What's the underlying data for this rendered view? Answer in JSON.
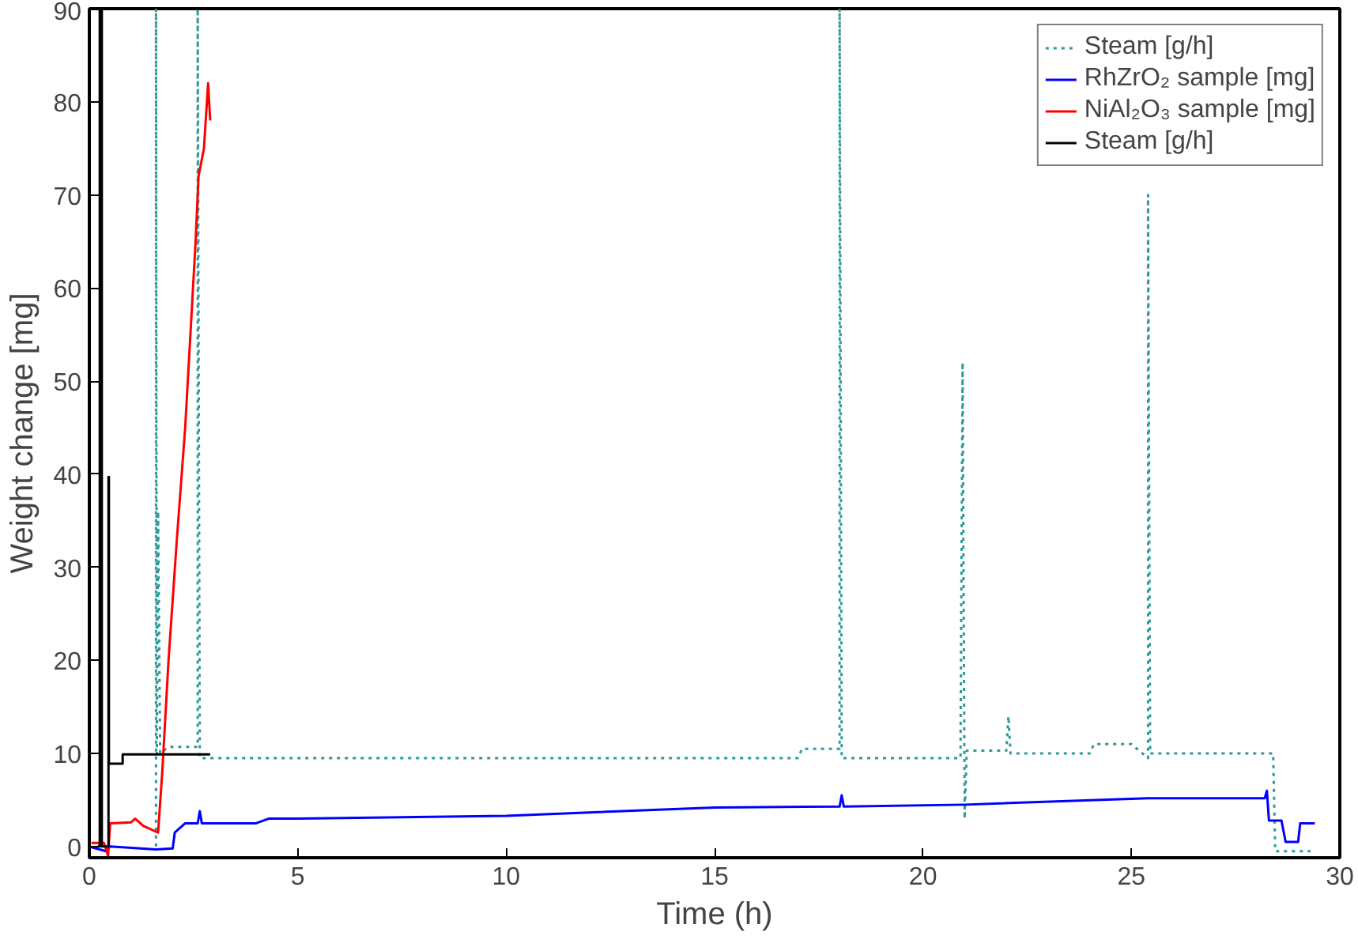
{
  "chart_data": {
    "type": "line",
    "xlabel": "Time (h)",
    "ylabel": "Weight change [mg]",
    "xlim": [
      0,
      30
    ],
    "ylim": [
      -1.2,
      90
    ],
    "xticks": [
      0,
      5,
      10,
      15,
      20,
      25,
      30
    ],
    "yticks": [
      0,
      10,
      20,
      30,
      40,
      50,
      60,
      70,
      80,
      90
    ],
    "grid": false,
    "legend": "top right",
    "marker": "none",
    "series": [
      {
        "name": "Steam [g/h]",
        "color": "#2e9a9a",
        "line_style": "dotted",
        "x": [
          1.6,
          1.6,
          1.62,
          1.65,
          1.7,
          1.9,
          2.6,
          2.6,
          2.65,
          17,
          17.1,
          18,
          18,
          18.05,
          20.9,
          20.95,
          21,
          21.05,
          22,
          22.05,
          22.1,
          24,
          24.1,
          25,
          25.4,
          25.4,
          25.45,
          28.4,
          28.45,
          29.3
        ],
        "values": [
          0,
          90,
          10,
          36,
          10,
          10.7,
          10.7,
          90,
          9.5,
          9.5,
          10.5,
          10.5,
          90,
          9.5,
          9.5,
          52,
          3,
          10.3,
          10.3,
          14,
          10,
          10,
          11,
          11,
          9.5,
          70,
          10,
          10,
          -0.5,
          -0.5
        ]
      },
      {
        "name": "RhZrO₂ sample [mg]",
        "color": "#0000ff",
        "line_style": "solid",
        "x": [
          0,
          0.4,
          0.5,
          1.6,
          2.0,
          2.05,
          2.3,
          2.6,
          2.65,
          2.7,
          4,
          4.3,
          5,
          10,
          15,
          18,
          18.05,
          18.1,
          21,
          25.4,
          28.2,
          28.25,
          28.3,
          28.6,
          28.7,
          29,
          29.05,
          29.4
        ],
        "values": [
          0,
          -0.5,
          0,
          -0.3,
          -0.2,
          1.5,
          2.5,
          2.5,
          3.8,
          2.5,
          2.5,
          3,
          3,
          3.3,
          4.2,
          4.3,
          5.5,
          4.3,
          4.5,
          5.2,
          5.2,
          6,
          2.8,
          2.8,
          0.5,
          0.5,
          2.5,
          2.5
        ]
      },
      {
        "name": "NiAl₂O₃ sample [mg]",
        "color": "#ff0000",
        "line_style": "solid",
        "x": [
          0.05,
          0.35,
          0.45,
          0.5,
          1.0,
          1.1,
          1.3,
          1.65,
          1.75,
          1.9,
          2.1,
          2.3,
          2.45,
          2.55,
          2.62,
          2.75,
          2.85,
          2.9
        ],
        "values": [
          0.4,
          0.4,
          -1,
          2.5,
          2.6,
          3,
          2.2,
          1.5,
          8,
          20,
          33,
          45,
          57,
          65,
          72,
          75,
          82,
          78
        ]
      },
      {
        "name": "Steam [g/h]",
        "color": "#000000",
        "line_style": "solid",
        "x": [
          0.2,
          0.25,
          0.25,
          0.3,
          0.3,
          0.46,
          0.46,
          0.47,
          0.47,
          0.8,
          0.8,
          2.9
        ],
        "values": [
          0,
          0,
          90,
          90,
          0,
          0,
          39.7,
          39.7,
          8.9,
          8.9,
          9.9,
          9.9
        ]
      }
    ]
  }
}
